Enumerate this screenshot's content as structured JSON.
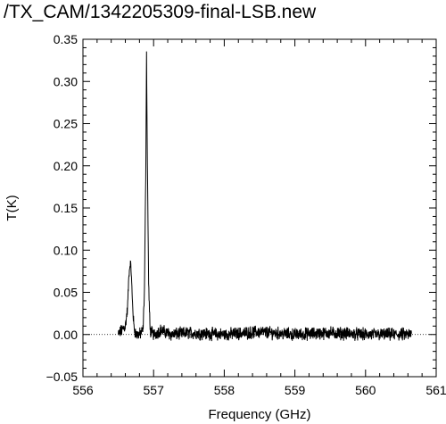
{
  "chart_data": {
    "type": "line",
    "title": "/TX_CAM/1342205309-final-LSB.new",
    "xlabel": "Frequency (GHz)",
    "ylabel": "T(K)",
    "xlim": [
      556,
      561
    ],
    "ylim": [
      -0.05,
      0.35
    ],
    "x_ticks": [
      "556",
      "557",
      "558",
      "559",
      "560",
      "561"
    ],
    "y_ticks": [
      "−0.05",
      "0.00",
      "0.05",
      "0.10",
      "0.15",
      "0.20",
      "0.25",
      "0.30",
      "0.35"
    ],
    "zero_line": true,
    "grid": false,
    "series": [
      {
        "x": [
          556.5,
          556.55,
          556.6,
          556.63,
          556.65,
          556.67,
          556.68,
          556.7,
          556.72,
          556.75,
          556.8,
          556.85,
          556.87,
          556.89,
          556.9,
          556.91,
          556.93,
          556.95,
          557.0,
          557.1,
          557.25,
          557.5,
          558.0,
          558.5,
          559.0,
          559.5,
          560.0,
          560.3,
          560.6,
          560.65
        ],
        "y": [
          0.0,
          0.005,
          0.01,
          0.03,
          0.07,
          0.085,
          0.08,
          0.04,
          0.01,
          0.0,
          0.0,
          0.005,
          0.05,
          0.2,
          0.335,
          0.22,
          0.06,
          0.005,
          0.0,
          0.005,
          0.0,
          0.002,
          0.0,
          0.003,
          0.0,
          0.002,
          0.0,
          0.0,
          0.0,
          0.0
        ]
      }
    ]
  }
}
